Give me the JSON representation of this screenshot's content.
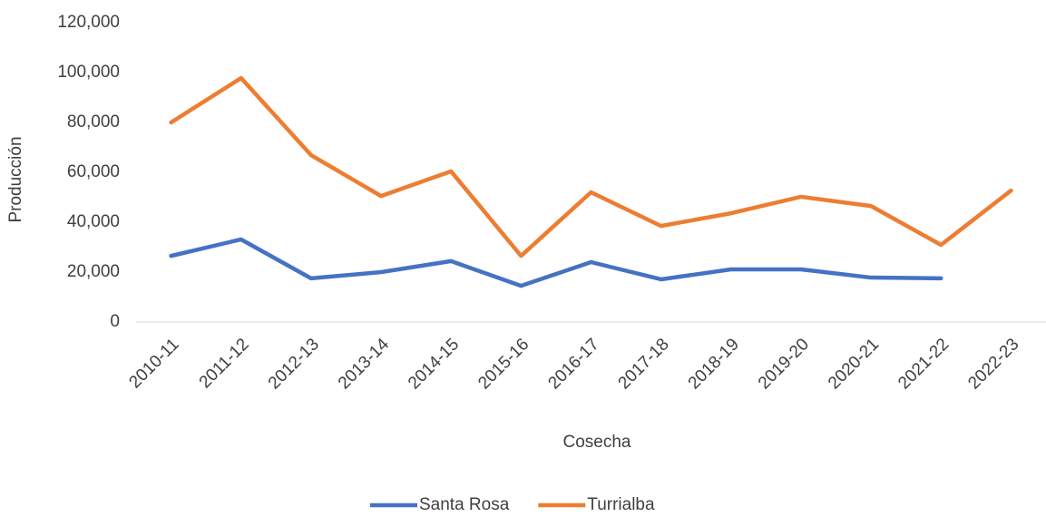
{
  "chart_data": {
    "type": "line",
    "x_label": "Cosecha",
    "y_label": "Producción",
    "categories": [
      "2010-11",
      "2011-12",
      "2012-13",
      "2013-14",
      "2014-15",
      "2015-16",
      "2016-17",
      "2017-18",
      "2018-19",
      "2019-20",
      "2020-21",
      "2021-22",
      "2022-23"
    ],
    "series": [
      {
        "name": "Santa Rosa",
        "color": "#4472c4",
        "values": [
          26500,
          33100,
          17500,
          20000,
          24400,
          14500,
          24000,
          17100,
          21100,
          21100,
          17800,
          17500,
          null
        ]
      },
      {
        "name": "Turrialba",
        "color": "#ed7d31",
        "values": [
          80000,
          97800,
          66900,
          50500,
          60400,
          26500,
          52000,
          38500,
          43600,
          50200,
          46500,
          30900,
          52700
        ]
      }
    ],
    "ylim": [
      0,
      120000
    ],
    "yticks": [
      0,
      {
        "value": 20000,
        "label": "20,000"
      },
      {
        "value": 40000,
        "label": "40,000"
      },
      {
        "value": 60000,
        "label": "60,000"
      },
      {
        "value": 80000,
        "label": "80,000"
      },
      {
        "value": 100000,
        "label": "100,000"
      },
      {
        "value": 120000,
        "label": "120,000"
      }
    ],
    "legend": "bottom"
  }
}
